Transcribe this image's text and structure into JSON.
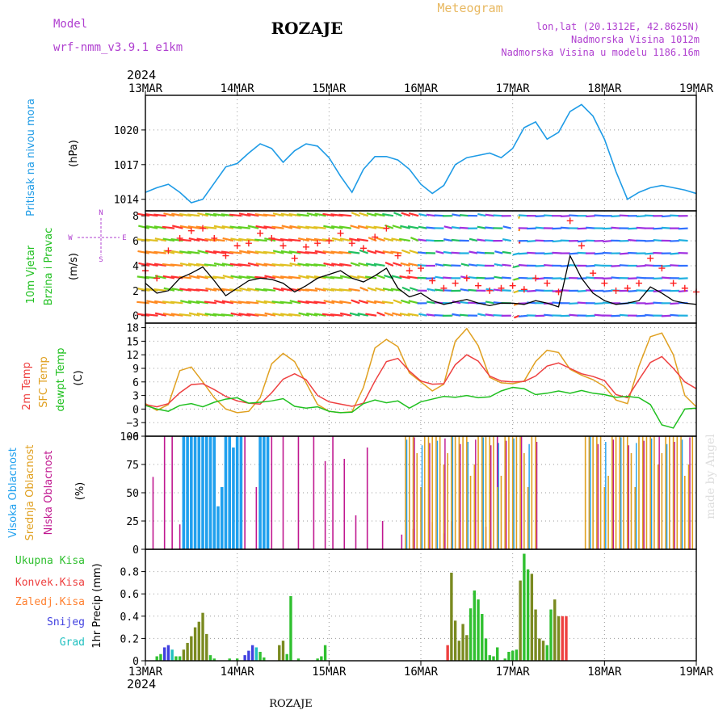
{
  "header": {
    "model_label": "Model",
    "model_name": "wrf-nmm_v3.9.1 e1km",
    "station": "ROZAJE",
    "meteogram": "Meteogram",
    "lonlat": "lon,lat (20.1312E, 42.8625N)",
    "altitude": "Nadmorska Visina 1012m",
    "model_altitude": "Nadmorska Visina u modelu 1186.16m",
    "year_top": "2024",
    "year_bottom": "2024",
    "footer_station": "ROZAJE",
    "watermark": "made by Angel"
  },
  "colors": {
    "pressure": "#1e9be6",
    "wind_speed": "#000000",
    "wind_gust": "#ff2020",
    "t2m": "#ee4040",
    "sfc": "#e0a020",
    "dewpt": "#20c020",
    "cloud_high": "#20a0ee",
    "cloud_mid": "#e0a020",
    "cloud_low": "#c01890",
    "precip_total": "#30c030",
    "precip_conv": "#ee4040",
    "precip_frz": "#ff8030",
    "snow": "#4040e0",
    "graupel": "#20c0c0"
  },
  "chart_data": [
    {
      "type": "line",
      "panel": "pressure",
      "ylabel_1": "Pritisak na nivou mora",
      "ylabel_2": "(hPa)",
      "yticks": [
        "1020",
        "1017",
        "1014"
      ],
      "ylim": [
        1013,
        1023
      ],
      "x": [
        0,
        3,
        6,
        9,
        12,
        15,
        18,
        21,
        24,
        27,
        30,
        33,
        36,
        39,
        42,
        45,
        48,
        51,
        54,
        57,
        60,
        63,
        66,
        69,
        72,
        75,
        78,
        81,
        84,
        87,
        90,
        93,
        96,
        99,
        102,
        105,
        108,
        111,
        114,
        117,
        120,
        123,
        126,
        129,
        132,
        135,
        138,
        141,
        144
      ],
      "values": [
        1014.6,
        1015.0,
        1015.3,
        1014.6,
        1013.7,
        1014.0,
        1015.4,
        1016.8,
        1017.1,
        1018.0,
        1018.8,
        1018.4,
        1017.2,
        1018.2,
        1018.8,
        1018.6,
        1017.6,
        1016.0,
        1014.6,
        1016.6,
        1017.7,
        1017.7,
        1017.4,
        1016.6,
        1015.3,
        1014.5,
        1015.2,
        1017.0,
        1017.6,
        1017.8,
        1018.0,
        1017.6,
        1018.4,
        1020.2,
        1020.7,
        1019.2,
        1019.8,
        1021.6,
        1022.2,
        1021.2,
        1019.2,
        1016.4,
        1014.0,
        1014.6,
        1015.0,
        1015.2,
        1015.0,
        1014.8,
        1014.5
      ],
      "series_name": "pressure"
    },
    {
      "type": "line",
      "panel": "wind",
      "ylabel_1": "10m Vjetar",
      "ylabel_1b": "Brzina i Pravac",
      "ylabel_2": "(m/s)",
      "compass": {
        "n": "N",
        "e": "E",
        "w": "W",
        "s": "S"
      },
      "yticks": [
        "8",
        "6",
        "4",
        "2",
        "0"
      ],
      "ylim": [
        -0.6,
        8.4
      ],
      "x": [
        0,
        3,
        6,
        9,
        12,
        15,
        18,
        21,
        24,
        27,
        30,
        33,
        36,
        39,
        42,
        45,
        48,
        51,
        54,
        57,
        60,
        63,
        66,
        69,
        72,
        75,
        78,
        81,
        84,
        87,
        90,
        93,
        96,
        99,
        102,
        105,
        108,
        111,
        114,
        117,
        120,
        123,
        126,
        129,
        132,
        135,
        138,
        141,
        144
      ],
      "speed": [
        2.6,
        1.8,
        2.0,
        3.0,
        3.4,
        3.9,
        2.8,
        1.6,
        2.2,
        2.8,
        3.0,
        2.9,
        2.6,
        1.9,
        2.4,
        3.0,
        3.3,
        3.6,
        3.0,
        2.7,
        3.2,
        3.8,
        2.2,
        1.5,
        1.8,
        1.2,
        0.9,
        1.1,
        1.3,
        1.0,
        0.8,
        1.0,
        1.0,
        0.9,
        1.2,
        1.0,
        0.7,
        4.8,
        3.0,
        1.8,
        1.2,
        0.9,
        1.0,
        1.2,
        2.3,
        1.8,
        1.2,
        1.0,
        0.9
      ],
      "gust": [
        3.6,
        3.0,
        5.2,
        6.2,
        6.8,
        7.0,
        6.2,
        4.8,
        5.6,
        5.8,
        6.6,
        6.2,
        5.6,
        4.6,
        5.5,
        5.8,
        6.0,
        6.6,
        5.8,
        5.4,
        6.3,
        7.0,
        4.8,
        3.6,
        3.8,
        2.8,
        2.2,
        2.6,
        3.0,
        2.4,
        2.0,
        2.2,
        2.4,
        2.1,
        3.0,
        2.6,
        1.9,
        7.6,
        5.6,
        3.4,
        2.6,
        2.0,
        2.2,
        2.6,
        4.6,
        3.8,
        2.6,
        2.2,
        1.9
      ]
    },
    {
      "type": "line",
      "panel": "temperature",
      "ylabel_1": "2m Temp",
      "ylabel_1b": "SFC Temp",
      "ylabel_1c": "dewpt Temp",
      "ylabel_2": "(C)",
      "yticks": [
        "18",
        "15",
        "12",
        "9",
        "6",
        "3",
        "0",
        "−3",
        "−6"
      ],
      "ylim": [
        -6,
        19
      ],
      "x": [
        0,
        3,
        6,
        9,
        12,
        15,
        18,
        21,
        24,
        27,
        30,
        33,
        36,
        39,
        42,
        45,
        48,
        51,
        54,
        57,
        60,
        63,
        66,
        69,
        72,
        75,
        78,
        81,
        84,
        87,
        90,
        93,
        96,
        99,
        102,
        105,
        108,
        111,
        114,
        117,
        120,
        123,
        126,
        129,
        132,
        135,
        138,
        141,
        144
      ],
      "t2m": [
        1.0,
        0.5,
        1.2,
        3.6,
        5.4,
        5.6,
        4.3,
        2.8,
        1.8,
        1.3,
        1.1,
        3.6,
        6.6,
        7.8,
        6.5,
        3.0,
        1.6,
        1.1,
        0.6,
        1.3,
        6.2,
        10.5,
        11.2,
        8.4,
        6.2,
        5.5,
        5.6,
        9.8,
        12.0,
        10.6,
        7.3,
        6.2,
        6.0,
        6.1,
        7.3,
        9.5,
        10.2,
        9.0,
        7.8,
        7.2,
        6.3,
        3.2,
        2.5,
        6.5,
        10.3,
        11.6,
        9.0,
        6.0,
        4.5
      ],
      "sfc": [
        1.2,
        -0.3,
        1.0,
        8.5,
        9.3,
        6.0,
        2.5,
        0.0,
        -0.8,
        -0.5,
        2.5,
        10.0,
        12.3,
        10.5,
        5.8,
        1.0,
        -0.5,
        -0.8,
        -0.6,
        4.8,
        13.5,
        15.4,
        13.8,
        8.0,
        6.0,
        4.0,
        5.5,
        15.0,
        17.8,
        14.0,
        7.0,
        5.8,
        5.6,
        6.2,
        10.5,
        13.0,
        12.5,
        8.8,
        7.5,
        6.5,
        5.0,
        2.0,
        1.2,
        9.5,
        16.0,
        16.8,
        12.0,
        3.0,
        0.5
      ],
      "dewpt": [
        0.8,
        0.0,
        -0.5,
        0.8,
        1.2,
        0.5,
        1.5,
        2.2,
        2.5,
        1.3,
        1.5,
        1.8,
        2.3,
        0.6,
        0.2,
        0.5,
        -0.5,
        -0.8,
        -0.7,
        1.2,
        2.0,
        1.4,
        1.8,
        0.2,
        1.6,
        2.2,
        2.8,
        2.6,
        3.0,
        2.5,
        2.7,
        4.0,
        4.8,
        4.5,
        3.2,
        3.5,
        4.0,
        3.5,
        4.1,
        3.5,
        3.2,
        2.6,
        2.8,
        2.5,
        1.0,
        -3.5,
        -4.2,
        0.0,
        0.2
      ]
    },
    {
      "type": "bar",
      "panel": "clouds",
      "ylabel_1": "Visoka Oblacnost",
      "ylabel_1b": "Srednja Oblacnost",
      "ylabel_1c": "Niska Oblacnost",
      "ylabel_2": "(%)",
      "yticks": [
        "100",
        "75",
        "50",
        "25",
        "0"
      ],
      "ylim": [
        0,
        100
      ],
      "low_x": [
        2,
        5,
        7,
        9,
        11,
        17,
        21,
        26,
        29,
        31,
        33,
        36,
        40,
        44,
        47,
        49,
        52,
        55,
        58,
        62,
        67,
        70,
        75,
        78,
        80,
        89,
        92
      ],
      "low_v": [
        64,
        100,
        100,
        22,
        58,
        30,
        35,
        100,
        55,
        100,
        100,
        100,
        100,
        100,
        78,
        100,
        80,
        30,
        90,
        25,
        13,
        18,
        24,
        14,
        25,
        20,
        100
      ],
      "high_x": [
        10,
        11,
        12,
        13,
        14,
        15,
        16,
        17,
        18,
        19,
        20,
        21,
        22,
        23,
        24,
        25,
        30,
        31,
        32
      ],
      "high_v": [
        100,
        100,
        100,
        100,
        100,
        100,
        100,
        100,
        100,
        38,
        55,
        100,
        100,
        90,
        100,
        100,
        100,
        100,
        100
      ],
      "dense_start_hour": 68,
      "dense_end_hour": 144,
      "sparse_hours": [
        103,
        104,
        105,
        106,
        107,
        108,
        109,
        110,
        111,
        112,
        113,
        114
      ]
    },
    {
      "type": "bar",
      "panel": "precip",
      "ylabel_1": "1hr Precip (mm)",
      "legend": [
        "Ukupna Kisa",
        "Konvek.Kisa",
        "Zaledj.Kisa",
        "Snijeg",
        "Grad"
      ],
      "yticks": [
        "0.8",
        "0.6",
        "0.4",
        "0.2",
        "0"
      ],
      "ylim": [
        0,
        1.0
      ],
      "hours": [
        3,
        4,
        5,
        6,
        7,
        8,
        9,
        10,
        11,
        12,
        13,
        14,
        15,
        16,
        17,
        18,
        22,
        24,
        26,
        27,
        28,
        29,
        30,
        31,
        35,
        36,
        37,
        38,
        40,
        45,
        46,
        47,
        79,
        80,
        81,
        82,
        83,
        84,
        85,
        86,
        87,
        88,
        89,
        90,
        91,
        92,
        94,
        95,
        96,
        97,
        98,
        99,
        100,
        101,
        102,
        103,
        104,
        105,
        106,
        107,
        108,
        109,
        110
      ],
      "values": [
        0.04,
        0.06,
        0.12,
        0.14,
        0.1,
        0.04,
        0.04,
        0.1,
        0.16,
        0.22,
        0.3,
        0.35,
        0.43,
        0.24,
        0.05,
        0.02,
        0.02,
        0.02,
        0.05,
        0.09,
        0.14,
        0.12,
        0.08,
        0.03,
        0.14,
        0.18,
        0.06,
        0.58,
        0.02,
        0.02,
        0.04,
        0.14,
        0.14,
        0.79,
        0.36,
        0.18,
        0.33,
        0.23,
        0.47,
        0.63,
        0.55,
        0.42,
        0.2,
        0.05,
        0.04,
        0.12,
        0.02,
        0.08,
        0.09,
        0.1,
        0.72,
        0.96,
        0.82,
        0.78,
        0.46,
        0.2,
        0.18,
        0.14,
        0.46,
        0.55,
        0.4,
        0.4,
        0.4
      ],
      "kinds": [
        "g",
        "g",
        "b",
        "b",
        "c",
        "g",
        "g",
        "o",
        "o",
        "o",
        "o",
        "o",
        "o",
        "o",
        "g",
        "g",
        "g",
        "g",
        "b",
        "b",
        "b",
        "c",
        "g",
        "g",
        "o",
        "o",
        "g",
        "g",
        "g",
        "g",
        "g",
        "g",
        "r",
        "o",
        "o",
        "o",
        "o",
        "o",
        "g",
        "g",
        "g",
        "g",
        "g",
        "g",
        "g",
        "g",
        "g",
        "g",
        "g",
        "g",
        "o",
        "g",
        "g",
        "o",
        "o",
        "o",
        "o",
        "g",
        "g",
        "o",
        "o",
        "r",
        "r"
      ]
    }
  ],
  "time_axis": {
    "labels": [
      "13MAR",
      "14MAR",
      "15MAR",
      "16MAR",
      "17MAR",
      "18MAR",
      "19MAR"
    ]
  }
}
